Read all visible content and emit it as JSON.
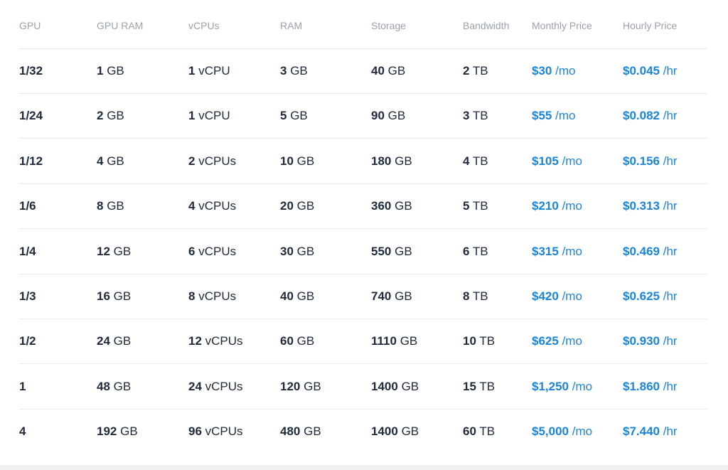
{
  "table": {
    "header": [
      "GPU",
      "GPU RAM",
      "vCPUs",
      "RAM",
      "Storage",
      "Bandwidth",
      "Monthly Price",
      "Hourly Price"
    ],
    "rows": [
      [
        [
          "1/32"
        ],
        [
          "1",
          "GB"
        ],
        [
          "1",
          "vCPU"
        ],
        [
          "3",
          "GB"
        ],
        [
          "40",
          "GB"
        ],
        [
          "2",
          "TB"
        ],
        [
          "$30",
          "/mo"
        ],
        [
          "$0.045",
          "/hr"
        ]
      ],
      [
        [
          "1/24"
        ],
        [
          "2",
          "GB"
        ],
        [
          "1",
          "vCPU"
        ],
        [
          "5",
          "GB"
        ],
        [
          "90",
          "GB"
        ],
        [
          "3",
          "TB"
        ],
        [
          "$55",
          "/mo"
        ],
        [
          "$0.082",
          "/hr"
        ]
      ],
      [
        [
          "1/12"
        ],
        [
          "4",
          "GB"
        ],
        [
          "2",
          "vCPUs"
        ],
        [
          "10",
          "GB"
        ],
        [
          "180",
          "GB"
        ],
        [
          "4",
          "TB"
        ],
        [
          "$105",
          "/mo"
        ],
        [
          "$0.156",
          "/hr"
        ]
      ],
      [
        [
          "1/6"
        ],
        [
          "8",
          "GB"
        ],
        [
          "4",
          "vCPUs"
        ],
        [
          "20",
          "GB"
        ],
        [
          "360",
          "GB"
        ],
        [
          "5",
          "TB"
        ],
        [
          "$210",
          "/mo"
        ],
        [
          "$0.313",
          "/hr"
        ]
      ],
      [
        [
          "1/4"
        ],
        [
          "12",
          "GB"
        ],
        [
          "6",
          "vCPUs"
        ],
        [
          "30",
          "GB"
        ],
        [
          "550",
          "GB"
        ],
        [
          "6",
          "TB"
        ],
        [
          "$315",
          "/mo"
        ],
        [
          "$0.469",
          "/hr"
        ]
      ],
      [
        [
          "1/3"
        ],
        [
          "16",
          "GB"
        ],
        [
          "8",
          "vCPUs"
        ],
        [
          "40",
          "GB"
        ],
        [
          "740",
          "GB"
        ],
        [
          "8",
          "TB"
        ],
        [
          "$420",
          "/mo"
        ],
        [
          "$0.625",
          "/hr"
        ]
      ],
      [
        [
          "1/2"
        ],
        [
          "24",
          "GB"
        ],
        [
          "12",
          "vCPUs"
        ],
        [
          "60",
          "GB"
        ],
        [
          "1110",
          "GB"
        ],
        [
          "10",
          "TB"
        ],
        [
          "$625",
          "/mo"
        ],
        [
          "$0.930",
          "/hr"
        ]
      ],
      [
        [
          "1"
        ],
        [
          "48",
          "GB"
        ],
        [
          "24",
          "vCPUs"
        ],
        [
          "120",
          "GB"
        ],
        [
          "1400",
          "GB"
        ],
        [
          "15",
          "TB"
        ],
        [
          "$1,250",
          "/mo"
        ],
        [
          "$1.860",
          "/hr"
        ]
      ],
      [
        [
          "4"
        ],
        [
          "192",
          "GB"
        ],
        [
          "96",
          "vCPUs"
        ],
        [
          "480",
          "GB"
        ],
        [
          "1400",
          "GB"
        ],
        [
          "60",
          "TB"
        ],
        [
          "$5,000",
          "/mo"
        ],
        [
          "$7.440",
          "/hr"
        ]
      ]
    ]
  }
}
